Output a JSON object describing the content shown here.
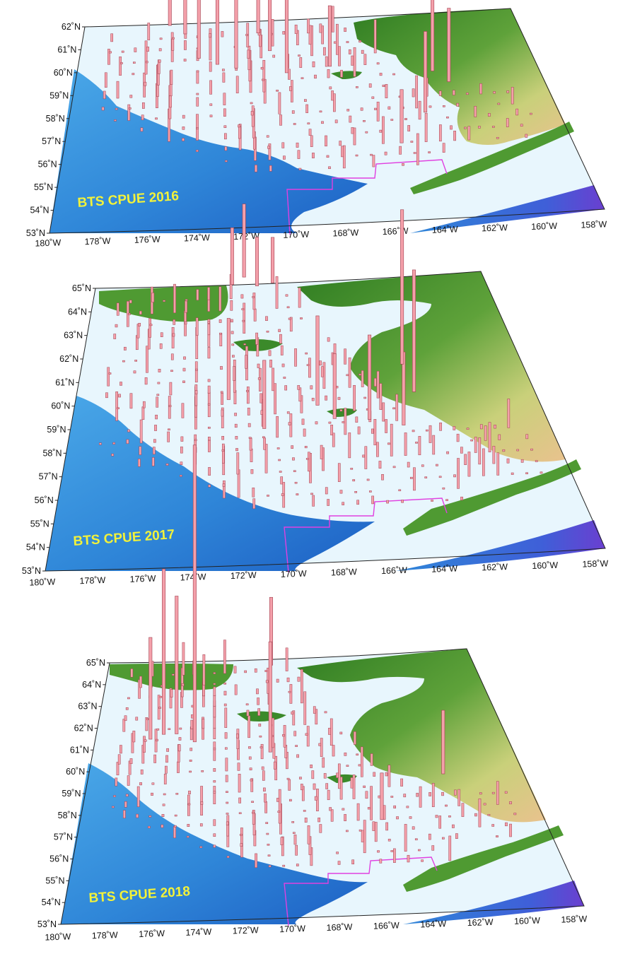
{
  "colors": {
    "deep_water": "#1565c0",
    "mid_water": "#3d9be0",
    "shelf_water": "#e6f5fd",
    "land_low": "#2e7d1e",
    "land_high": "#e8c896",
    "cpue_bar": "#f4a0aa",
    "cpue_bar_edge": "#a04050",
    "boundary_line": "#e040e0",
    "title_text": "#f2f23a"
  },
  "longitude_labels": [
    "180˚W",
    "178˚W",
    "176˚W",
    "174˚W",
    "172˚W",
    "170˚W",
    "168˚W",
    "166˚W",
    "164˚W",
    "162˚W",
    "160˚W",
    "158˚W"
  ],
  "panels": [
    {
      "title": "BTS CPUE 2016",
      "latitude_labels": [
        "53˚N",
        "54˚N",
        "55˚N",
        "56˚N",
        "57˚N",
        "58˚N",
        "59˚N",
        "60˚N",
        "61˚N",
        "62˚N"
      ],
      "tall_bars_lon": [
        -175.6,
        -174.8,
        -174.1,
        -173.2,
        -172.3,
        -171.1,
        -170.6,
        -169.9,
        -167.8,
        -165.3,
        -163.0,
        -162.4,
        -163.9
      ],
      "tall_bars_lat": [
        61.9,
        61.5,
        60.4,
        60.1,
        59.9,
        61.4,
        60.6,
        59.6,
        59.8,
        56.3,
        59.4,
        58.9,
        57.6
      ],
      "tall_bars_height": [
        0.35,
        0.42,
        0.55,
        0.38,
        0.46,
        0.62,
        0.48,
        0.51,
        0.33,
        0.29,
        0.78,
        0.4,
        0.44
      ]
    },
    {
      "title": "BTS CPUE 2017",
      "latitude_labels": [
        "53˚N",
        "54˚N",
        "55˚N",
        "56˚N",
        "57˚N",
        "58˚N",
        "59˚N",
        "60˚N",
        "61˚N",
        "62˚N",
        "63˚N",
        "64˚N",
        "65˚N"
      ],
      "tall_bars_lon": [
        -172.2,
        -171.5,
        -170.8,
        -169.9,
        -168.4,
        -167.7,
        -166.1,
        -164.6,
        -163.9,
        -163.7,
        -172.6,
        -171.0
      ],
      "tall_bars_lat": [
        64.9,
        65.2,
        64.8,
        64.9,
        59.6,
        59.0,
        58.9,
        58.6,
        61.2,
        60.0,
        60.0,
        58.7
      ],
      "tall_bars_height": [
        0.35,
        0.45,
        0.3,
        0.28,
        0.55,
        0.4,
        0.52,
        0.45,
        0.95,
        0.75,
        0.5,
        0.42
      ]
    },
    {
      "title": "BTS CPUE 2018",
      "latitude_labels": [
        "53˚N",
        "54˚N",
        "55˚N",
        "56˚N",
        "57˚N",
        "58˚N",
        "59˚N",
        "60˚N",
        "61˚N",
        "62˚N",
        "63˚N",
        "64˚N",
        "65˚N"
      ],
      "tall_bars_lon": [
        -174.6,
        -176.3,
        -175.6,
        -170.1,
        -170.6,
        -177.0,
        -162.0,
        -165.6
      ],
      "tall_bars_lat": [
        61.2,
        61.6,
        61.6,
        64.6,
        60.6,
        61.4,
        59.3,
        57.3
      ],
      "tall_bars_height": [
        1.4,
        0.78,
        0.65,
        0.32,
        0.52,
        0.48,
        0.3,
        0.22
      ]
    }
  ]
}
